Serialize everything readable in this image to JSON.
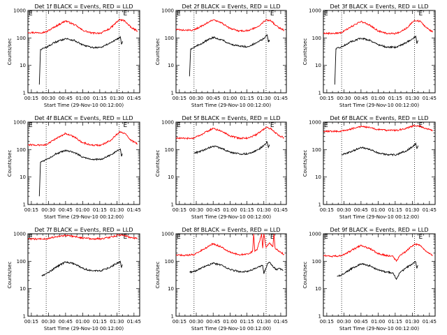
{
  "chart_data": [
    {
      "type": "line",
      "title": "Det 1f BLACK = Events, RED = LLD",
      "xlabel": "Start Time (29-Nov-10 00:12:00)",
      "ylabel": "Counts/sec",
      "ylog": true,
      "ylim": [
        1,
        1000
      ],
      "xtick_labels": [
        "00:15",
        "00:30",
        "00:45",
        "01:00",
        "01:15",
        "01:30",
        "01:45"
      ],
      "ytick_labels": [
        "1",
        "10",
        "100",
        "1000"
      ],
      "annotations": [
        {
          "text": "E",
          "time": "00:12"
        },
        {
          "text": "E",
          "time": "01:35"
        }
      ],
      "dotted_vlines": [
        "00:28",
        "01:32"
      ],
      "series": [
        {
          "name": "LLD",
          "color": "#ff0000",
          "x": [
            "00:12",
            "00:20",
            "00:28",
            "00:36",
            "00:45",
            "00:53",
            "01:00",
            "01:08",
            "01:16",
            "01:24",
            "01:32",
            "01:37",
            "01:40",
            "01:43",
            "01:48"
          ],
          "y": [
            160,
            155,
            165,
            260,
            420,
            300,
            190,
            150,
            150,
            220,
            460,
            420,
            300,
            230,
            180
          ]
        },
        {
          "name": "Events",
          "color": "#000000",
          "x": [
            "00:22",
            "00:23",
            "00:26",
            "00:30",
            "00:36",
            "00:45",
            "00:53",
            "01:00",
            "01:08",
            "01:16",
            "01:24",
            "01:30",
            "01:33",
            "01:34",
            "01:35"
          ],
          "y": [
            2,
            38,
            42,
            50,
            70,
            95,
            80,
            55,
            45,
            45,
            65,
            90,
            110,
            60,
            75
          ]
        }
      ]
    },
    {
      "type": "line",
      "title": "Det 2f BLACK = Events, RED = LLD",
      "xlabel": "Start Time (29-Nov-10 00:12:00)",
      "ylabel": "Counts/sec",
      "ylog": true,
      "ylim": [
        1,
        1000
      ],
      "xtick_labels": [
        "00:15",
        "00:30",
        "00:45",
        "01:00",
        "01:15",
        "01:30",
        "01:45"
      ],
      "ytick_labels": [
        "1",
        "10",
        "100",
        "1000"
      ],
      "annotations": [
        {
          "text": "E",
          "time": "00:12"
        },
        {
          "text": "E",
          "time": "01:35"
        }
      ],
      "dotted_vlines": [
        "00:28",
        "01:32"
      ],
      "series": [
        {
          "name": "LLD",
          "color": "#ff0000",
          "x": [
            "00:12",
            "00:20",
            "00:28",
            "00:36",
            "00:45",
            "00:53",
            "01:00",
            "01:08",
            "01:16",
            "01:24",
            "01:32",
            "01:37",
            "01:40",
            "01:43",
            "01:48"
          ],
          "y": [
            200,
            190,
            195,
            290,
            460,
            340,
            220,
            180,
            185,
            250,
            460,
            410,
            300,
            240,
            190
          ]
        },
        {
          "name": "Events",
          "color": "#000000",
          "x": [
            "00:24",
            "00:25",
            "00:28",
            "00:32",
            "00:38",
            "00:45",
            "00:53",
            "01:00",
            "01:08",
            "01:16",
            "01:24",
            "01:30",
            "01:33",
            "01:34",
            "01:35"
          ],
          "y": [
            4,
            40,
            45,
            55,
            75,
            105,
            85,
            60,
            50,
            48,
            68,
            95,
            130,
            70,
            85
          ]
        }
      ]
    },
    {
      "type": "line",
      "title": "Det 3f BLACK = Events, RED = LLD",
      "xlabel": "Start Time (29-Nov-10 00:12:00)",
      "ylabel": "Counts/sec",
      "ylog": true,
      "ylim": [
        1,
        1000
      ],
      "xtick_labels": [
        "00:15",
        "00:30",
        "00:45",
        "01:00",
        "01:15",
        "01:30",
        "01:45"
      ],
      "ytick_labels": [
        "1",
        "10",
        "100",
        "1000"
      ],
      "annotations": [
        {
          "text": "E",
          "time": "00:12"
        },
        {
          "text": "E",
          "time": "01:35"
        }
      ],
      "dotted_vlines": [
        "00:28",
        "01:32"
      ],
      "series": [
        {
          "name": "LLD",
          "color": "#ff0000",
          "x": [
            "00:12",
            "00:20",
            "00:28",
            "00:36",
            "00:45",
            "00:53",
            "01:00",
            "01:08",
            "01:16",
            "01:24",
            "01:32",
            "01:37",
            "01:40",
            "01:43",
            "01:48"
          ],
          "y": [
            150,
            145,
            155,
            250,
            400,
            290,
            180,
            145,
            145,
            210,
            440,
            400,
            290,
            220,
            170
          ]
        },
        {
          "name": "Events",
          "color": "#000000",
          "x": [
            "00:22",
            "00:23",
            "00:26",
            "00:30",
            "00:36",
            "00:45",
            "00:53",
            "01:00",
            "01:08",
            "01:16",
            "01:24",
            "01:30",
            "01:33",
            "01:34",
            "01:35"
          ],
          "y": [
            2,
            40,
            44,
            52,
            72,
            98,
            82,
            57,
            46,
            46,
            66,
            92,
            115,
            62,
            80
          ]
        }
      ]
    },
    {
      "type": "line",
      "title": "Det 4f BLACK = Events, RED = LLD",
      "xlabel": "Start Time (29-Nov-10 00:12:00)",
      "ylabel": "Counts/sec",
      "ylog": true,
      "ylim": [
        1,
        1000
      ],
      "xtick_labels": [
        "00:15",
        "00:30",
        "00:45",
        "01:00",
        "01:15",
        "01:30",
        "01:45"
      ],
      "ytick_labels": [
        "1",
        "10",
        "100",
        "1000"
      ],
      "annotations": [
        {
          "text": "E",
          "time": "00:12"
        },
        {
          "text": "E",
          "time": "01:35"
        }
      ],
      "dotted_vlines": [
        "00:28",
        "01:32"
      ],
      "series": [
        {
          "name": "LLD",
          "color": "#ff0000",
          "x": [
            "00:12",
            "00:20",
            "00:28",
            "00:36",
            "00:45",
            "00:53",
            "01:00",
            "01:08",
            "01:16",
            "01:24",
            "01:32",
            "01:37",
            "01:40",
            "01:43",
            "01:48"
          ],
          "y": [
            150,
            145,
            150,
            240,
            390,
            280,
            180,
            145,
            145,
            210,
            430,
            390,
            280,
            210,
            160
          ]
        },
        {
          "name": "Events",
          "color": "#000000",
          "x": [
            "00:22",
            "00:23",
            "00:26",
            "00:30",
            "00:36",
            "00:45",
            "00:53",
            "01:00",
            "01:08",
            "01:16",
            "01:24",
            "01:30",
            "01:33",
            "01:34",
            "01:35"
          ],
          "y": [
            2,
            35,
            40,
            48,
            68,
            92,
            78,
            54,
            44,
            44,
            62,
            88,
            105,
            58,
            70
          ]
        }
      ]
    },
    {
      "type": "line",
      "title": "Det 5f BLACK = Events, RED = LLD",
      "xlabel": "Start Time (29-Nov-10 00:12:00)",
      "ylabel": "Counts/sec",
      "ylog": true,
      "ylim": [
        1,
        1000
      ],
      "xtick_labels": [
        "00:15",
        "00:30",
        "00:45",
        "01:00",
        "01:15",
        "01:30",
        "01:45"
      ],
      "ytick_labels": [
        "1",
        "10",
        "100",
        "1000"
      ],
      "annotations": [
        {
          "text": "E",
          "time": "00:12"
        },
        {
          "text": "E",
          "time": "01:35"
        }
      ],
      "dotted_vlines": [
        "00:28",
        "01:32"
      ],
      "series": [
        {
          "name": "LLD",
          "color": "#ff0000",
          "x": [
            "00:12",
            "00:20",
            "00:28",
            "00:36",
            "00:45",
            "00:53",
            "01:00",
            "01:08",
            "01:16",
            "01:24",
            "01:32",
            "01:37",
            "01:40",
            "01:43",
            "01:48"
          ],
          "y": [
            260,
            255,
            260,
            380,
            600,
            460,
            310,
            260,
            265,
            360,
            650,
            560,
            420,
            330,
            270
          ]
        },
        {
          "name": "Events",
          "color": "#000000",
          "x": [
            "00:28",
            "00:32",
            "00:38",
            "00:45",
            "00:53",
            "01:00",
            "01:08",
            "01:16",
            "01:24",
            "01:30",
            "01:33",
            "01:34",
            "01:35"
          ],
          "y": [
            75,
            82,
            100,
            135,
            110,
            80,
            70,
            70,
            95,
            140,
            190,
            120,
            150
          ]
        }
      ]
    },
    {
      "type": "line",
      "title": "Det 6f BLACK = Events, RED = LLD",
      "xlabel": "Start Time (29-Nov-10 00:12:00)",
      "ylabel": "Counts/sec",
      "ylog": true,
      "ylim": [
        1,
        1000
      ],
      "xtick_labels": [
        "00:15",
        "00:30",
        "00:45",
        "01:00",
        "01:15",
        "01:30",
        "01:45"
      ],
      "ytick_labels": [
        "1",
        "10",
        "100",
        "1000"
      ],
      "annotations": [
        {
          "text": "E",
          "time": "00:12"
        },
        {
          "text": "E",
          "time": "01:35"
        }
      ],
      "dotted_vlines": [
        "00:28",
        "01:32"
      ],
      "series": [
        {
          "name": "LLD",
          "color": "#ff0000",
          "x": [
            "00:12",
            "00:20",
            "00:28",
            "00:36",
            "00:45",
            "00:53",
            "01:00",
            "01:08",
            "01:16",
            "01:24",
            "01:32",
            "01:37",
            "01:40",
            "01:43",
            "01:48"
          ],
          "y": [
            470,
            460,
            470,
            560,
            700,
            620,
            540,
            500,
            500,
            580,
            760,
            700,
            620,
            560,
            500
          ]
        },
        {
          "name": "Events",
          "color": "#000000",
          "x": [
            "00:28",
            "00:32",
            "00:38",
            "00:45",
            "00:53",
            "01:00",
            "01:08",
            "01:16",
            "01:24",
            "01:30",
            "01:33",
            "01:34",
            "01:35"
          ],
          "y": [
            65,
            72,
            90,
            120,
            100,
            75,
            65,
            65,
            88,
            125,
            170,
            110,
            140
          ]
        }
      ]
    },
    {
      "type": "line",
      "title": "Det 7f BLACK = Events, RED = LLD",
      "xlabel": "Start Time (29-Nov-10 00:12:00)",
      "ylabel": "Counts/sec",
      "ylog": true,
      "ylim": [
        1,
        1000
      ],
      "xtick_labels": [
        "00:15",
        "00:30",
        "00:45",
        "01:00",
        "01:15",
        "01:30",
        "01:45"
      ],
      "ytick_labels": [
        "1",
        "10",
        "100",
        "1000"
      ],
      "annotations": [
        {
          "text": "E",
          "time": "00:12"
        },
        {
          "text": "E",
          "time": "01:35"
        }
      ],
      "dotted_vlines": [
        "00:28",
        "01:32"
      ],
      "series": [
        {
          "name": "LLD",
          "color": "#ff0000",
          "x": [
            "00:12",
            "00:20",
            "00:28",
            "00:36",
            "00:45",
            "00:53",
            "01:00",
            "01:08",
            "01:16",
            "01:24",
            "01:32",
            "01:37",
            "01:40",
            "01:43",
            "01:48"
          ],
          "y": [
            650,
            640,
            660,
            760,
            880,
            800,
            700,
            660,
            660,
            740,
            920,
            860,
            780,
            720,
            680
          ]
        },
        {
          "name": "Events",
          "color": "#000000",
          "x": [
            "00:24",
            "00:28",
            "00:32",
            "00:38",
            "00:45",
            "00:53",
            "01:00",
            "01:08",
            "01:16",
            "01:24",
            "01:30",
            "01:33",
            "01:34",
            "01:35"
          ],
          "y": [
            30,
            35,
            45,
            65,
            95,
            80,
            55,
            45,
            45,
            60,
            85,
            100,
            60,
            75
          ]
        }
      ]
    },
    {
      "type": "line",
      "title": "Det 8f BLACK = Events, RED = LLD",
      "xlabel": "Start Time (29-Nov-10 00:12:00)",
      "ylabel": "Counts/sec",
      "ylog": true,
      "ylim": [
        1,
        1000
      ],
      "xtick_labels": [
        "00:15",
        "00:30",
        "00:45",
        "01:00",
        "01:15",
        "01:30",
        "01:45"
      ],
      "ytick_labels": [
        "1",
        "10",
        "100",
        "1000"
      ],
      "annotations": [
        {
          "text": "E",
          "time": "00:12"
        },
        {
          "text": "E",
          "time": "01:35"
        }
      ],
      "dotted_vlines": [
        "00:28",
        "01:32"
      ],
      "series": [
        {
          "name": "LLD",
          "color": "#ff0000",
          "x": [
            "00:12",
            "00:20",
            "00:28",
            "00:36",
            "00:45",
            "00:53",
            "01:00",
            "01:08",
            "01:16",
            "01:20",
            "01:21",
            "01:22",
            "01:24",
            "01:28",
            "01:29",
            "01:30",
            "01:32",
            "01:35",
            "01:38",
            "01:39",
            "01:40",
            "01:43",
            "01:48"
          ],
          "y": [
            170,
            165,
            175,
            270,
            440,
            320,
            210,
            175,
            180,
            230,
            1000,
            230,
            260,
            1000,
            300,
            1000,
            320,
            470,
            330,
            1000,
            300,
            230,
            180
          ]
        },
        {
          "name": "Events",
          "color": "#000000",
          "x": [
            "00:24",
            "00:28",
            "00:32",
            "00:38",
            "00:45",
            "00:53",
            "01:00",
            "01:08",
            "01:16",
            "01:24",
            "01:29",
            "01:30",
            "01:33",
            "01:35",
            "01:38",
            "01:41",
            "01:44",
            "01:47"
          ],
          "y": [
            40,
            42,
            50,
            65,
            85,
            72,
            50,
            42,
            42,
            58,
            70,
            35,
            78,
            90,
            65,
            50,
            55,
            45
          ]
        }
      ]
    },
    {
      "type": "line",
      "title": "Det 9f BLACK = Events, RED = LLD",
      "xlabel": "Start Time (29-Nov-10 00:12:00)",
      "ylabel": "Counts/sec",
      "ylog": true,
      "ylim": [
        1,
        1000
      ],
      "xtick_labels": [
        "00:15",
        "00:30",
        "00:45",
        "01:00",
        "01:15",
        "01:30",
        "01:45"
      ],
      "ytick_labels": [
        "1",
        "10",
        "100",
        "1000"
      ],
      "annotations": [
        {
          "text": "E",
          "time": "00:12"
        },
        {
          "text": "E",
          "time": "01:35"
        }
      ],
      "dotted_vlines": [
        "00:28",
        "01:32"
      ],
      "series": [
        {
          "name": "LLD",
          "color": "#ff0000",
          "x": [
            "00:12",
            "00:20",
            "00:28",
            "00:36",
            "00:45",
            "00:53",
            "01:00",
            "01:08",
            "01:13",
            "01:16",
            "01:19",
            "01:24",
            "01:32",
            "01:37",
            "01:40",
            "01:43",
            "01:48"
          ],
          "y": [
            160,
            150,
            160,
            240,
            380,
            290,
            190,
            160,
            155,
            100,
            160,
            220,
            430,
            380,
            270,
            210,
            160
          ]
        },
        {
          "name": "Events",
          "color": "#000000",
          "x": [
            "00:24",
            "00:28",
            "00:32",
            "00:38",
            "00:45",
            "00:53",
            "01:00",
            "01:08",
            "01:13",
            "01:16",
            "01:19",
            "01:24",
            "01:30",
            "01:33",
            "01:34",
            "01:35"
          ],
          "y": [
            28,
            32,
            40,
            58,
            80,
            68,
            48,
            40,
            38,
            22,
            38,
            55,
            80,
            95,
            55,
            70
          ]
        }
      ]
    }
  ]
}
